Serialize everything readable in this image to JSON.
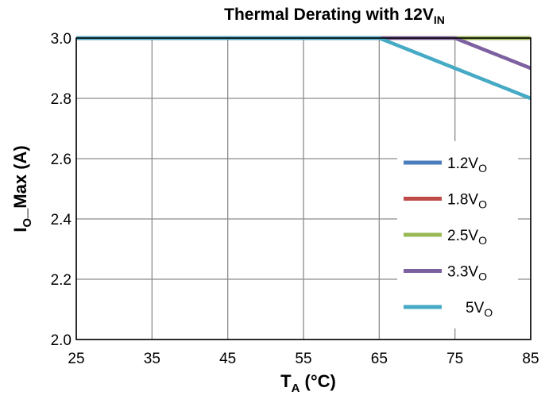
{
  "chart_data": {
    "type": "line",
    "title": {
      "main": "Thermal Derating with 12V",
      "sub": "IN"
    },
    "xlabel": {
      "main": "T",
      "sub": "A",
      "rest": " (°C)"
    },
    "ylabel": {
      "main": "I",
      "sub": "O",
      "rest": "_Max (A)"
    },
    "xlim": [
      25,
      85
    ],
    "ylim": [
      2.0,
      3.0
    ],
    "x_ticks": [
      "25",
      "35",
      "45",
      "55",
      "65",
      "75",
      "85"
    ],
    "y_ticks": [
      "2.0",
      "2.2",
      "2.4",
      "2.6",
      "2.8",
      "3.0"
    ],
    "grid": true,
    "legend_position": "right",
    "series": [
      {
        "name": "1.2V",
        "name_sub": "O",
        "color": "#4a7ebb",
        "x": [
          25,
          85
        ],
        "y": [
          3.0,
          3.0
        ]
      },
      {
        "name": "1.8V",
        "name_sub": "O",
        "color": "#be4b48",
        "x": [
          25,
          85
        ],
        "y": [
          3.0,
          3.0
        ]
      },
      {
        "name": "2.5V",
        "name_sub": "O",
        "color": "#98b954",
        "x": [
          25,
          85
        ],
        "y": [
          3.0,
          3.0
        ]
      },
      {
        "name": "3.3V",
        "name_sub": "O",
        "color": "#7d60a0",
        "x": [
          25,
          75,
          80,
          85
        ],
        "y": [
          3.0,
          3.0,
          2.95,
          2.9
        ]
      },
      {
        "name": "5V",
        "name_sub": "O",
        "color": "#46aac5",
        "x": [
          25,
          65,
          70,
          75,
          80,
          85
        ],
        "y": [
          3.0,
          3.0,
          2.95,
          2.9,
          2.85,
          2.8
        ]
      }
    ]
  }
}
